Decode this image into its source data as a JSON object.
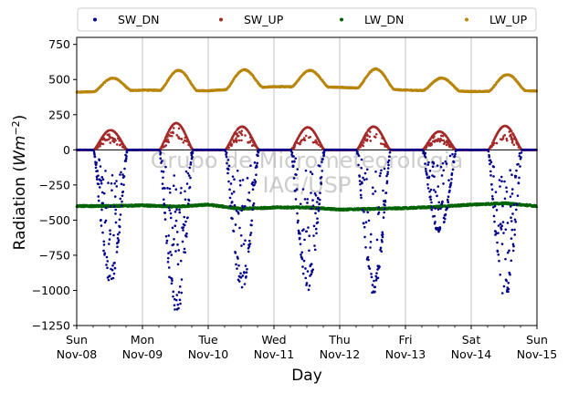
{
  "chart_data": {
    "type": "scatter",
    "ylabel": "Radiation (W m^-2)",
    "ylabel_parts": {
      "prefix": "Radiation (",
      "unit_main": "Wm",
      "unit_exp": "−2",
      "suffix": ")"
    },
    "xlabel": "Day",
    "watermark_line1": "Grupo de Micrometeorologia",
    "watermark_line2": "IAG/USP",
    "ylim": [
      -1250,
      800
    ],
    "yticks": [
      -1250,
      -1000,
      -750,
      -500,
      -250,
      0,
      250,
      500,
      750
    ],
    "ytick_labels": [
      "−1250",
      "−1000",
      "−750",
      "−500",
      "−250",
      "0",
      "250",
      "500",
      "750"
    ],
    "xlim": [
      0,
      7
    ],
    "xticks": [
      {
        "x": 0,
        "day": "Sun",
        "date": "Nov-08"
      },
      {
        "x": 1,
        "day": "Mon",
        "date": "Nov-09"
      },
      {
        "x": 2,
        "day": "Tue",
        "date": "Nov-10"
      },
      {
        "x": 3,
        "day": "Wed",
        "date": "Nov-11"
      },
      {
        "x": 4,
        "day": "Thu",
        "date": "Nov-12"
      },
      {
        "x": 5,
        "day": "Fri",
        "date": "Nov-13"
      },
      {
        "x": 6,
        "day": "Sat",
        "date": "Nov-14"
      },
      {
        "x": 7,
        "day": "Sun",
        "date": "Nov-15"
      }
    ],
    "grid": "vertical",
    "legend_placement": "top, above axes",
    "series": [
      {
        "name": "SW_DN",
        "color": "#00008b",
        "night_value": 0,
        "daily_peaks": [
          -950,
          -1200,
          -1000,
          -1000,
          -1050,
          -620,
          -1090
        ],
        "day_start_frac": 0.26,
        "day_end_frac": 0.77
      },
      {
        "name": "SW_UP",
        "color": "#a52a2a",
        "night_value": 0,
        "daily_peaks": [
          140,
          190,
          165,
          160,
          165,
          130,
          170
        ],
        "day_start_frac": 0.26,
        "day_end_frac": 0.77
      },
      {
        "name": "LW_DN",
        "color": "#006400",
        "base_values": [
          -400,
          -400,
          -395,
          -405,
          -390,
          -420,
          -410,
          -410,
          -425,
          -420,
          -415,
          -405,
          -390,
          -380,
          -400
        ]
      },
      {
        "name": "LW_UP",
        "color": "#b8860b",
        "night_values": [
          410,
          425,
          420,
          450,
          445,
          425,
          415,
          420
        ],
        "daily_peaks": [
          510,
          565,
          570,
          565,
          575,
          510,
          535
        ]
      }
    ]
  }
}
